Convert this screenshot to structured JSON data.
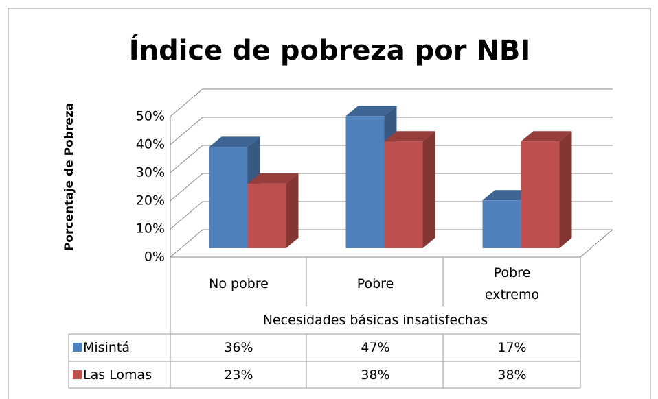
{
  "chart_data": {
    "type": "bar3d",
    "title": "Índice de pobreza por NBI",
    "x_label": "Necesidades básicas insatisfechas",
    "y_label": "Porcentaje de Pobreza",
    "categories": [
      "No pobre",
      "Pobre",
      "Pobre extremo"
    ],
    "series": [
      {
        "name": "Misintá",
        "color": "#4f81bd",
        "values": [
          36,
          47,
          17
        ],
        "value_labels": [
          "36%",
          "47%",
          "17%"
        ]
      },
      {
        "name": "Las Lomas",
        "color": "#c0504d",
        "values": [
          23,
          38,
          38
        ],
        "value_labels": [
          "23%",
          "38%",
          "38%"
        ]
      }
    ],
    "ylim": [
      0,
      50
    ],
    "yticks": [
      {
        "value": 0,
        "label": "0%"
      },
      {
        "value": 10,
        "label": "10%"
      },
      {
        "value": 20,
        "label": "20%"
      },
      {
        "value": 30,
        "label": "30%"
      },
      {
        "value": 40,
        "label": "40%"
      },
      {
        "value": 50,
        "label": "50%"
      }
    ],
    "grid": true
  }
}
